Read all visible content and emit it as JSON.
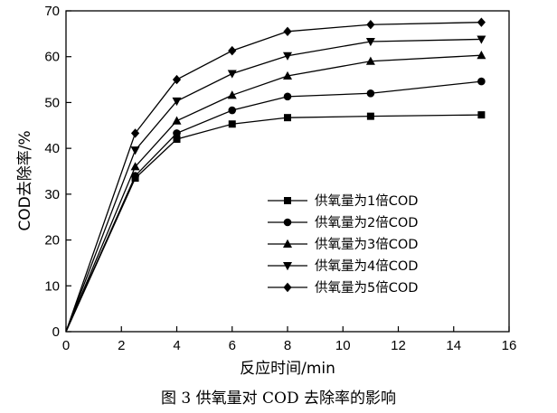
{
  "caption": "图 3   供氧量对 COD 去除率的影响",
  "chart_data": {
    "type": "line",
    "title": "",
    "xlabel": "反应时间/min",
    "ylabel": "COD去除率/%",
    "xlim": [
      0,
      16
    ],
    "ylim": [
      0,
      70
    ],
    "xticks": [
      0,
      2,
      4,
      6,
      8,
      10,
      12,
      14,
      16
    ],
    "yticks": [
      0,
      10,
      20,
      30,
      40,
      50,
      60,
      70
    ],
    "grid": false,
    "legend_position": "bottom-right",
    "x": [
      0,
      2.5,
      4,
      6,
      8,
      11,
      15
    ],
    "series": [
      {
        "name": "供氧量为1倍COD",
        "marker": "square",
        "values": [
          0,
          33.5,
          42,
          45.3,
          46.7,
          47,
          47.3
        ]
      },
      {
        "name": "供氧量为2倍COD",
        "marker": "circle",
        "values": [
          0,
          34,
          43.3,
          48.3,
          51.3,
          52,
          54.6
        ]
      },
      {
        "name": "供氧量为3倍COD",
        "marker": "triangle-up",
        "values": [
          0,
          36,
          46,
          51.6,
          55.8,
          59,
          60.3
        ]
      },
      {
        "name": "供氧量为4倍COD",
        "marker": "triangle-down",
        "values": [
          0,
          39.6,
          50.3,
          56.3,
          60.2,
          63.3,
          63.8
        ]
      },
      {
        "name": "供氧量为5倍COD",
        "marker": "diamond",
        "values": [
          0,
          43.3,
          55,
          61.3,
          65.5,
          67,
          67.5
        ]
      }
    ]
  }
}
